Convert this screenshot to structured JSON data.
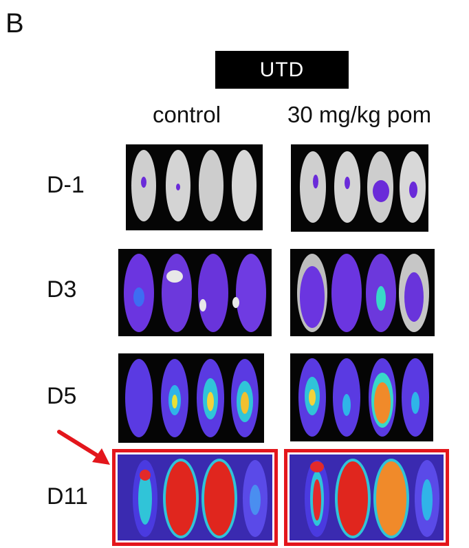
{
  "panel_letter": "B",
  "group_label": "UTD",
  "columns": [
    "control",
    "30 mg/kg pom"
  ],
  "rows": [
    "D-1",
    "D3",
    "D5",
    "D11"
  ],
  "highlighted_row": "D11",
  "colors": {
    "highlight": "#e3161c",
    "background": "#ffffff",
    "label_bar": "#000000"
  }
}
